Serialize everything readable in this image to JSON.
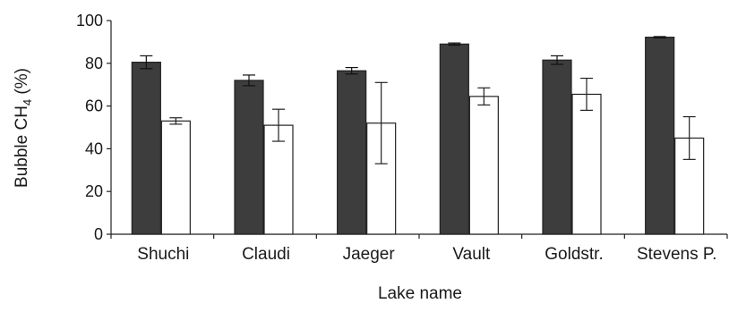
{
  "chart_data": {
    "type": "bar",
    "categories": [
      "Shuchi",
      "Claudi",
      "Jaeger",
      "Vault",
      "Goldstr.",
      "Stevens P."
    ],
    "series": [
      {
        "values": [
          80.5,
          72,
          76.5,
          89,
          81.5,
          92.2
        ],
        "errors": [
          3,
          2.5,
          1.5,
          0.5,
          2,
          0.3
        ],
        "color": "#3d3d3d"
      },
      {
        "values": [
          53,
          51,
          52,
          64.5,
          65.5,
          45
        ],
        "errors": [
          1.5,
          7.5,
          19,
          4,
          7.5,
          10
        ],
        "color": "#ffffff"
      }
    ],
    "xlabel": "Lake name",
    "ylabel": {
      "prefix": "Bubble CH",
      "subscript": "4",
      "suffix": " (%)"
    },
    "ylim": [
      0,
      100
    ],
    "yticks": [
      0,
      20,
      40,
      60,
      80,
      100
    ],
    "grid": false,
    "legend": "none"
  }
}
